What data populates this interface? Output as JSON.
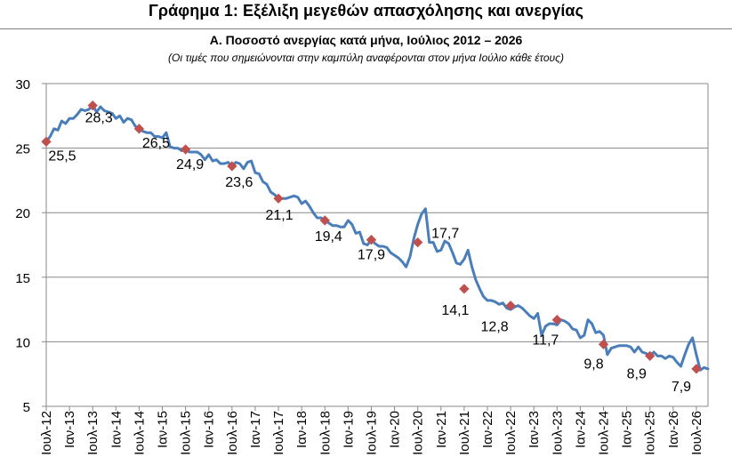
{
  "header": {
    "title": "Γράφημα 1: Εξέλιξη μεγεθών απασχόλησης και ανεργίας"
  },
  "chart_data": {
    "type": "line",
    "title": "Α. Ποσοστό ανεργίας κατά μήνα, Ιούλιος 2012 – 2026",
    "subtitle": "(Οι τιμές που σημειώνονται στην καμπύλη αναφέρονται στον μήνα Ιούλιο κάθε έτους)",
    "xlabel": "",
    "ylabel": "",
    "ylim": [
      5,
      30
    ],
    "yticks": [
      5,
      10,
      15,
      20,
      25,
      30
    ],
    "grid": true,
    "line_color": "#4a7ebb",
    "marker_color": "#c0504d",
    "x_tick_labels": [
      "Ιουλ-12",
      "Ιαν-13",
      "Ιουλ-13",
      "Ιαν-14",
      "Ιουλ-14",
      "Ιαν-15",
      "Ιουλ-15",
      "Ιαν-16",
      "Ιουλ-16",
      "Ιαν-17",
      "Ιουλ-17",
      "Ιαν-18",
      "Ιουλ-18",
      "Ιαν-19",
      "Ιουλ-19",
      "Ιαν-20",
      "Ιουλ-20",
      "Ιαν-21",
      "Ιουλ-21",
      "Ιαν-22",
      "Ιουλ-22",
      "Ιαν-23",
      "Ιουλ-23",
      "Ιαν-24",
      "Ιουλ-24",
      "Ιαν-25",
      "Ιουλ-25",
      "Ιαν-26",
      "Ιουλ-26"
    ],
    "series": [
      {
        "values": [
          25.5,
          25.9,
          26.5,
          26.4,
          27.1,
          26.9,
          27.3,
          27.3,
          27.6,
          28.0,
          27.9,
          28.0,
          28.3,
          27.8,
          28.2,
          27.9,
          27.8,
          27.7,
          27.3,
          27.5,
          27.0,
          27.3,
          27.2,
          26.7,
          26.5,
          26.3,
          26.2,
          26.2,
          25.9,
          25.9,
          25.8,
          26.2,
          25.1,
          25.0,
          25.0,
          24.8,
          24.9,
          24.7,
          24.7,
          24.7,
          24.5,
          24.1,
          24.5,
          24.0,
          24.1,
          23.8,
          23.8,
          23.9,
          23.6,
          23.9,
          23.8,
          23.4,
          23.9,
          24.0,
          23.1,
          23.0,
          22.4,
          22.2,
          21.6,
          21.4,
          21.1,
          21.1,
          21.1,
          21.2,
          21.3,
          21.2,
          20.7,
          20.9,
          20.5,
          20.0,
          19.6,
          19.6,
          19.4,
          19.2,
          19.0,
          19.0,
          18.9,
          18.9,
          19.4,
          19.1,
          18.4,
          18.5,
          17.6,
          17.5,
          17.9,
          17.6,
          17.4,
          17.4,
          17.3,
          16.9,
          16.7,
          16.5,
          16.2,
          15.8,
          16.6,
          18.0,
          19.1,
          19.9,
          20.3,
          17.7,
          17.7,
          17.0,
          17.1,
          17.8,
          17.6,
          16.9,
          16.1,
          16.0,
          16.4,
          17.1,
          15.8,
          14.8,
          14.1,
          13.5,
          13.2,
          13.2,
          13.1,
          12.9,
          13.0,
          12.6,
          12.5,
          12.7,
          12.8,
          12.6,
          12.3,
          12.0,
          11.8,
          12.2,
          10.5,
          11.2,
          11.4,
          11.4,
          11.3,
          11.7,
          11.6,
          11.4,
          11.0,
          10.9,
          10.3,
          10.5,
          11.7,
          11.4,
          10.7,
          10.8,
          10.5,
          9.0,
          9.5,
          9.6,
          9.7,
          9.7,
          9.7,
          9.6,
          9.2,
          9.6,
          9.2,
          9.1,
          8.9,
          9.2,
          8.9,
          8.9,
          8.7,
          8.9,
          8.8,
          8.4,
          8.1,
          9.0,
          9.8,
          10.3,
          9.0,
          7.8,
          8.0,
          7.9
        ]
      }
    ],
    "july_markers": [
      {
        "label": "25,5",
        "value": 25.5
      },
      {
        "label": "28,3",
        "value": 28.3
      },
      {
        "label": "26,5",
        "value": 26.5
      },
      {
        "label": "24,9",
        "value": 24.9
      },
      {
        "label": "23,6",
        "value": 23.6
      },
      {
        "label": "21,1",
        "value": 21.1
      },
      {
        "label": "19,4",
        "value": 19.4
      },
      {
        "label": "17,9",
        "value": 17.9
      },
      {
        "label": "17,7",
        "value": 17.7
      },
      {
        "label": "14,1",
        "value": 14.1
      },
      {
        "label": "12,8",
        "value": 12.8
      },
      {
        "label": "11,7",
        "value": 11.7
      },
      {
        "label": "9,8",
        "value": 9.8
      },
      {
        "label": "8,9",
        "value": 8.9
      },
      {
        "label": "7,9",
        "value": 7.9
      }
    ]
  }
}
